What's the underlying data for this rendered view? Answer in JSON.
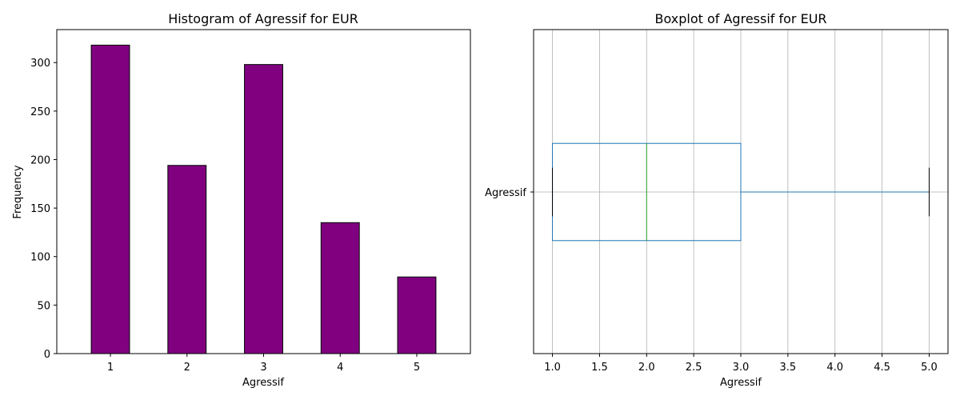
{
  "colors": {
    "bar_fill": "#800080",
    "bar_edge": "#000000",
    "box": "#1f77b4",
    "median": "#2ca02c",
    "whisker_cap": "#000000",
    "grid": "#b0b0b0"
  },
  "chart_data": [
    {
      "type": "bar",
      "title": "Histogram of Agressif for EUR",
      "xlabel": "Agressif",
      "ylabel": "Frequency",
      "categories": [
        "1",
        "2",
        "3",
        "4",
        "5"
      ],
      "values": [
        318,
        194,
        298,
        135,
        79
      ],
      "ylim": [
        0,
        334
      ],
      "yticks": [
        0,
        50,
        100,
        150,
        200,
        250,
        300
      ],
      "grid": false
    },
    {
      "type": "box",
      "title": "Boxplot of Agressif for EUR",
      "xlabel": "Agressif",
      "series_label": "Agressif",
      "orientation": "horizontal",
      "whisker_low": 1.0,
      "q1": 1.0,
      "median": 2.0,
      "q3": 3.0,
      "whisker_high": 5.0,
      "xlim": [
        0.8,
        5.2
      ],
      "xticks": [
        "1.0",
        "1.5",
        "2.0",
        "2.5",
        "3.0",
        "3.5",
        "4.0",
        "4.5",
        "5.0"
      ],
      "grid": true
    }
  ]
}
